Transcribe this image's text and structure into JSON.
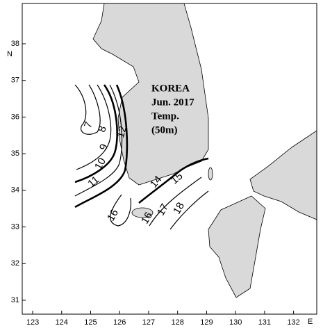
{
  "chart_data": {
    "type": "map",
    "annotations": [
      "KOREA",
      "Jun. 2017",
      "Temp.",
      "(50m)"
    ],
    "contour_labels": [
      7,
      8,
      9,
      10,
      11,
      12,
      14,
      15,
      16,
      16,
      17,
      18
    ],
    "xlabel": "E",
    "ylabel": "N",
    "xlim": [
      122.64,
      132.8
    ],
    "ylim": [
      30.62,
      39.1
    ],
    "xticks": [
      123,
      124,
      125,
      126,
      127,
      128,
      129,
      130,
      131,
      132
    ],
    "yticks": [
      31,
      32,
      33,
      34,
      35,
      36,
      37,
      38
    ]
  }
}
